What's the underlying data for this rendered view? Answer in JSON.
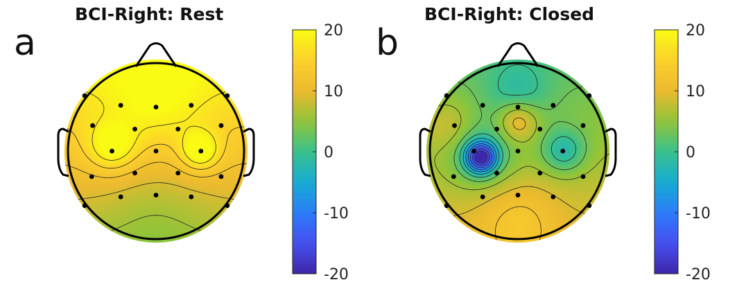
{
  "chart_data": [
    {
      "type": "heatmap",
      "panel_letter": "a",
      "title": "BCI-Right: Rest",
      "colorbar": {
        "min": -20,
        "max": 20,
        "ticks": [
          20,
          10,
          0,
          -10,
          -20
        ]
      },
      "electrodes": [
        {
          "x": -0.81,
          "y": 0.63
        },
        {
          "x": -0.4,
          "y": 0.52
        },
        {
          "x": 0.0,
          "y": 0.5
        },
        {
          "x": 0.4,
          "y": 0.52
        },
        {
          "x": 0.81,
          "y": 0.63
        },
        {
          "x": -0.72,
          "y": 0.29
        },
        {
          "x": -0.24,
          "y": 0.25
        },
        {
          "x": 0.25,
          "y": 0.25
        },
        {
          "x": 0.74,
          "y": 0.29
        },
        {
          "x": -0.5,
          "y": 0.0
        },
        {
          "x": 0.0,
          "y": 0.0
        },
        {
          "x": 0.51,
          "y": 0.0
        },
        {
          "x": -0.73,
          "y": -0.29
        },
        {
          "x": -0.24,
          "y": -0.25
        },
        {
          "x": 0.25,
          "y": -0.25
        },
        {
          "x": 0.74,
          "y": -0.29
        },
        {
          "x": -0.81,
          "y": -0.62
        },
        {
          "x": -0.4,
          "y": -0.52
        },
        {
          "x": 0.0,
          "y": -0.5
        },
        {
          "x": 0.4,
          "y": -0.52
        },
        {
          "x": 0.81,
          "y": -0.62
        }
      ],
      "field": {
        "base": 13,
        "gradient": [
          0,
          7
        ],
        "sources": [
          {
            "x": -0.5,
            "y": 0.05,
            "amp": 8,
            "sigma": 0.2
          },
          {
            "x": 0.5,
            "y": 0.0,
            "amp": 9,
            "sigma": 0.16
          },
          {
            "x": 0.0,
            "y": 0.55,
            "amp": 4,
            "sigma": 0.35
          },
          {
            "x": 0.0,
            "y": -0.6,
            "amp": -2,
            "sigma": 0.4
          }
        ]
      }
    },
    {
      "type": "heatmap",
      "panel_letter": "b",
      "title": "BCI-Right: Closed",
      "colorbar": {
        "min": -20,
        "max": 20,
        "ticks": [
          20,
          10,
          0,
          -10,
          -20
        ]
      },
      "electrodes": [
        {
          "x": -0.81,
          "y": 0.63
        },
        {
          "x": -0.4,
          "y": 0.52
        },
        {
          "x": 0.0,
          "y": 0.5
        },
        {
          "x": 0.4,
          "y": 0.52
        },
        {
          "x": 0.81,
          "y": 0.63
        },
        {
          "x": -0.72,
          "y": 0.29
        },
        {
          "x": -0.24,
          "y": 0.25
        },
        {
          "x": 0.25,
          "y": 0.25
        },
        {
          "x": 0.74,
          "y": 0.29
        },
        {
          "x": -0.5,
          "y": 0.0
        },
        {
          "x": 0.0,
          "y": 0.0
        },
        {
          "x": 0.51,
          "y": 0.0
        },
        {
          "x": -0.73,
          "y": -0.29
        },
        {
          "x": -0.24,
          "y": -0.25
        },
        {
          "x": 0.25,
          "y": -0.25
        },
        {
          "x": 0.74,
          "y": -0.29
        },
        {
          "x": -0.81,
          "y": -0.62
        },
        {
          "x": -0.4,
          "y": -0.52
        },
        {
          "x": 0.0,
          "y": -0.5
        },
        {
          "x": 0.4,
          "y": -0.52
        },
        {
          "x": 0.81,
          "y": -0.62
        }
      ],
      "field": {
        "base": 6,
        "gradient": [
          0,
          -4
        ],
        "sources": [
          {
            "x": -0.42,
            "y": -0.07,
            "amp": -22,
            "sigma": 0.12
          },
          {
            "x": -0.42,
            "y": -0.05,
            "amp": -6,
            "sigma": 0.28
          },
          {
            "x": 0.0,
            "y": 0.35,
            "amp": 8,
            "sigma": 0.16
          },
          {
            "x": 0.52,
            "y": 0.0,
            "amp": -8,
            "sigma": 0.18
          },
          {
            "x": 0.0,
            "y": 0.65,
            "amp": -5,
            "sigma": 0.25
          },
          {
            "x": 0.0,
            "y": -0.75,
            "amp": 4,
            "sigma": 0.3
          },
          {
            "x": -0.8,
            "y": 0.3,
            "amp": 4,
            "sigma": 0.22
          }
        ]
      }
    }
  ]
}
